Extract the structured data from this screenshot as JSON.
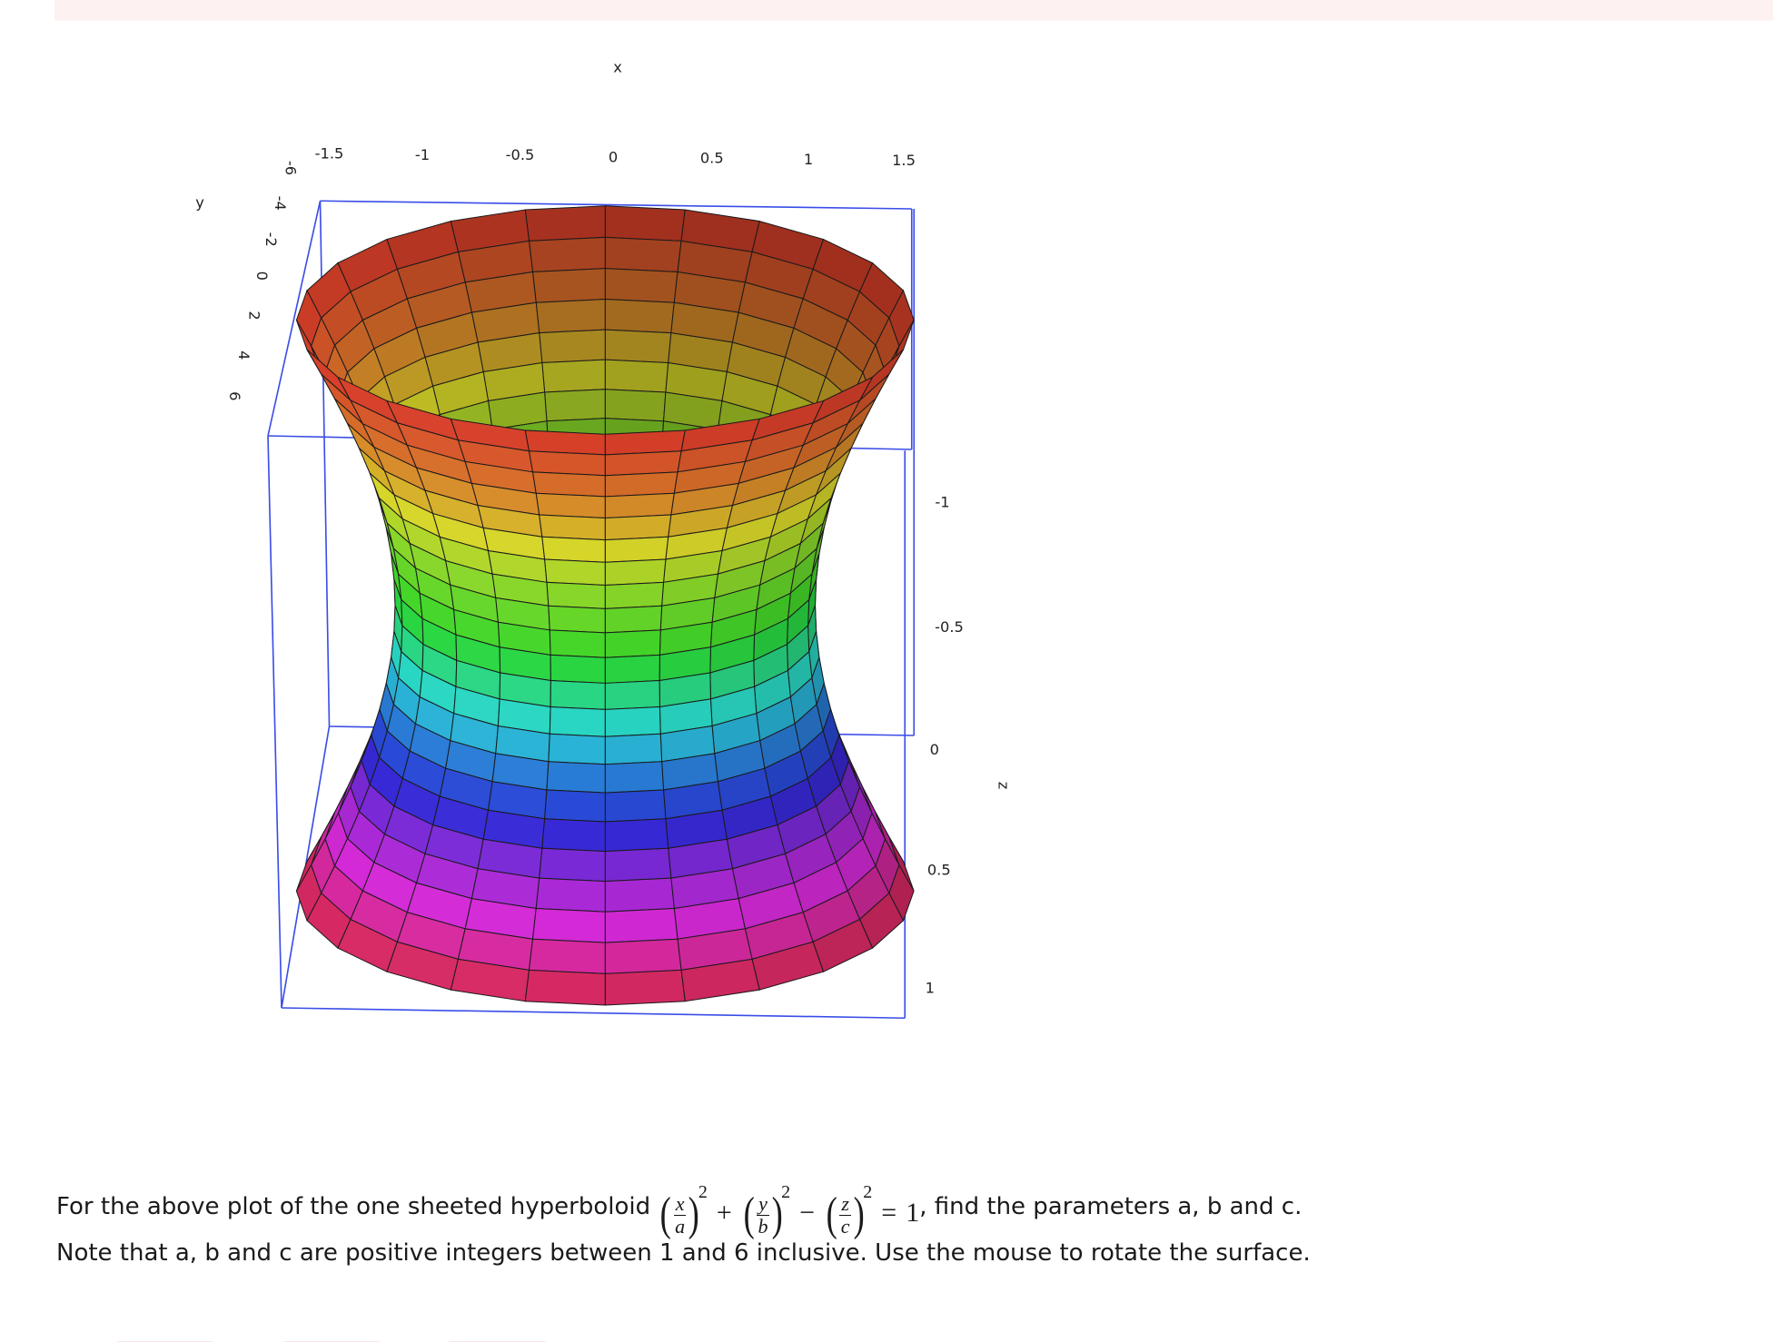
{
  "plot": {
    "x_axis": {
      "label": "x",
      "ticks": [
        -1.5,
        -1,
        -0.5,
        0,
        0.5,
        1,
        1.5
      ]
    },
    "y_axis": {
      "label": "y",
      "ticks": [
        -6,
        -4,
        -2,
        0,
        2,
        4,
        6
      ]
    },
    "z_axis": {
      "label": "z",
      "ticks": [
        -1,
        -0.5,
        0,
        0.5,
        1
      ]
    }
  },
  "question": {
    "before": "For the above plot of the one sheeted hyperboloid",
    "formula": {
      "terms": [
        {
          "num": "x",
          "den": "a",
          "power": 2
        },
        {
          "num": "y",
          "den": "b",
          "power": 2
        },
        {
          "num": "z",
          "den": "c",
          "power": 2
        }
      ],
      "ops": [
        "+",
        "−"
      ],
      "equals": "=",
      "rhs": 1
    },
    "after": ", find the parameters a, b and c. Note that a, b and c are positive integers between 1 and 6 inclusive. Use the mouse to rotate the surface."
  }
}
